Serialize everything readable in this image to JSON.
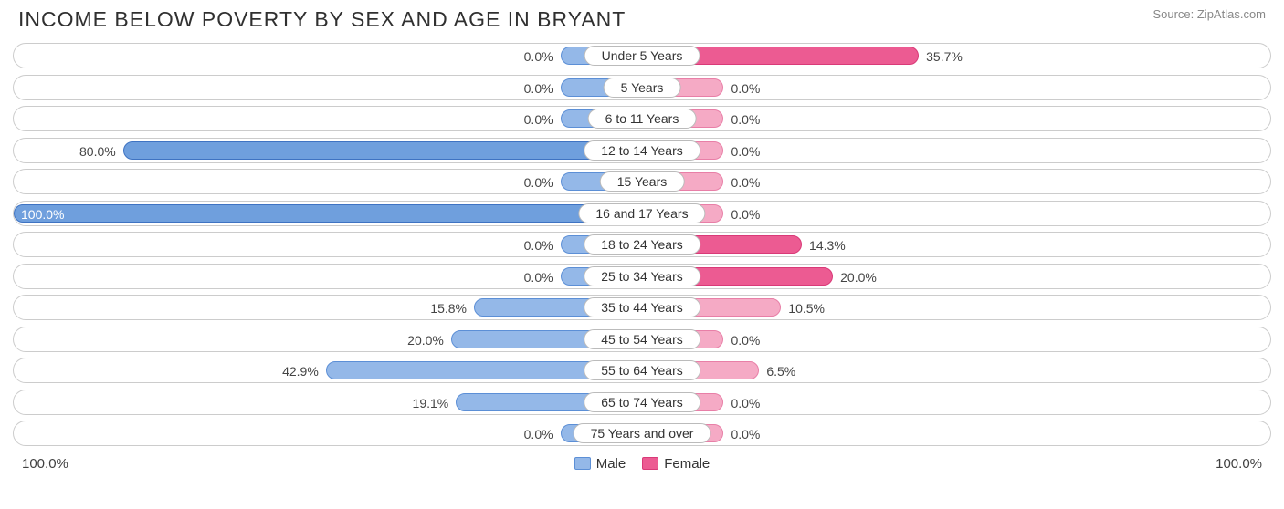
{
  "title": "INCOME BELOW POVERTY BY SEX AND AGE IN BRYANT",
  "source": "Source: ZipAtlas.com",
  "axis": {
    "left": "100.0%",
    "right": "100.0%"
  },
  "legend": {
    "male": "Male",
    "female": "Female"
  },
  "colors": {
    "male_fill": "#94b8e8",
    "male_border": "#5c8fd6",
    "male_hi_fill": "#6f9fdd",
    "male_hi_border": "#3f73c2",
    "female_fill": "#f5aac5",
    "female_border": "#e87fa7",
    "female_hi_fill": "#ec5b92",
    "female_hi_border": "#d93a78",
    "track_border": "#cccccc"
  },
  "base_bar_pct": 13,
  "rows": [
    {
      "age": "Under 5 Years",
      "male": 0.0,
      "male_label": "0.0%",
      "female": 35.7,
      "female_label": "35.7%",
      "female_hi": true
    },
    {
      "age": "5 Years",
      "male": 0.0,
      "male_label": "0.0%",
      "female": 0.0,
      "female_label": "0.0%"
    },
    {
      "age": "6 to 11 Years",
      "male": 0.0,
      "male_label": "0.0%",
      "female": 0.0,
      "female_label": "0.0%"
    },
    {
      "age": "12 to 14 Years",
      "male": 80.0,
      "male_label": "80.0%",
      "female": 0.0,
      "female_label": "0.0%",
      "male_hi": true
    },
    {
      "age": "15 Years",
      "male": 0.0,
      "male_label": "0.0%",
      "female": 0.0,
      "female_label": "0.0%"
    },
    {
      "age": "16 and 17 Years",
      "male": 100.0,
      "male_label": "100.0%",
      "female": 0.0,
      "female_label": "0.0%",
      "male_hi": true
    },
    {
      "age": "18 to 24 Years",
      "male": 0.0,
      "male_label": "0.0%",
      "female": 14.3,
      "female_label": "14.3%",
      "female_hi": true
    },
    {
      "age": "25 to 34 Years",
      "male": 0.0,
      "male_label": "0.0%",
      "female": 20.0,
      "female_label": "20.0%",
      "female_hi": true
    },
    {
      "age": "35 to 44 Years",
      "male": 15.8,
      "male_label": "15.8%",
      "female": 10.5,
      "female_label": "10.5%"
    },
    {
      "age": "45 to 54 Years",
      "male": 20.0,
      "male_label": "20.0%",
      "female": 0.0,
      "female_label": "0.0%"
    },
    {
      "age": "55 to 64 Years",
      "male": 42.9,
      "male_label": "42.9%",
      "female": 6.5,
      "female_label": "6.5%"
    },
    {
      "age": "65 to 74 Years",
      "male": 19.1,
      "male_label": "19.1%",
      "female": 0.0,
      "female_label": "0.0%"
    },
    {
      "age": "75 Years and over",
      "male": 0.0,
      "male_label": "0.0%",
      "female": 0.0,
      "female_label": "0.0%"
    }
  ]
}
